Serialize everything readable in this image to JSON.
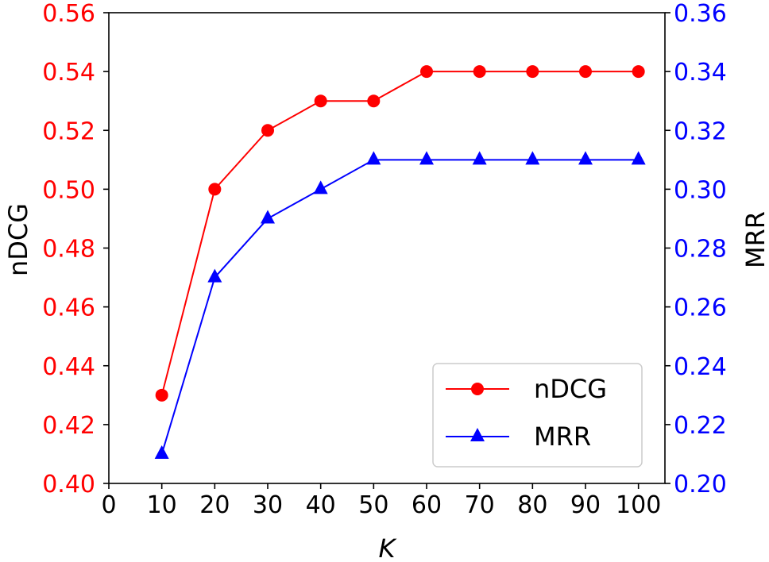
{
  "chart_data": {
    "type": "line",
    "x": [
      10,
      20,
      30,
      40,
      50,
      60,
      70,
      80,
      90,
      100
    ],
    "xlabel": "K",
    "xlim": [
      0,
      105
    ],
    "xticks": [
      0,
      10,
      20,
      30,
      40,
      50,
      60,
      70,
      80,
      90,
      100
    ],
    "xtick_labels": [
      "0",
      "10",
      "20",
      "30",
      "40",
      "50",
      "60",
      "70",
      "80",
      "90",
      "100"
    ],
    "left_axis": {
      "label": "nDCG",
      "color": "#ff0000",
      "ylim": [
        0.4,
        0.56
      ],
      "ticks": [
        0.4,
        0.42,
        0.44,
        0.46,
        0.48,
        0.5,
        0.52,
        0.54,
        0.56
      ],
      "tick_labels": [
        "0.40",
        "0.42",
        "0.44",
        "0.46",
        "0.48",
        "0.50",
        "0.52",
        "0.54",
        "0.56"
      ]
    },
    "right_axis": {
      "label": "MRR",
      "color": "#0000ff",
      "ylim": [
        0.2,
        0.36
      ],
      "ticks": [
        0.2,
        0.22,
        0.24,
        0.26,
        0.28,
        0.3,
        0.32,
        0.34,
        0.36
      ],
      "tick_labels": [
        "0.20",
        "0.22",
        "0.24",
        "0.26",
        "0.28",
        "0.30",
        "0.32",
        "0.34",
        "0.36"
      ]
    },
    "series": [
      {
        "name": "nDCG",
        "axis": "left",
        "color": "#ff0000",
        "marker": "circle",
        "values": [
          0.43,
          0.5,
          0.52,
          0.53,
          0.53,
          0.54,
          0.54,
          0.54,
          0.54,
          0.54
        ]
      },
      {
        "name": "MRR",
        "axis": "right",
        "color": "#0000ff",
        "marker": "triangle",
        "values": [
          0.21,
          0.27,
          0.29,
          0.3,
          0.31,
          0.31,
          0.31,
          0.31,
          0.31,
          0.31
        ]
      }
    ],
    "legend": {
      "position": "lower-right",
      "entries": [
        "nDCG",
        "MRR"
      ]
    }
  }
}
